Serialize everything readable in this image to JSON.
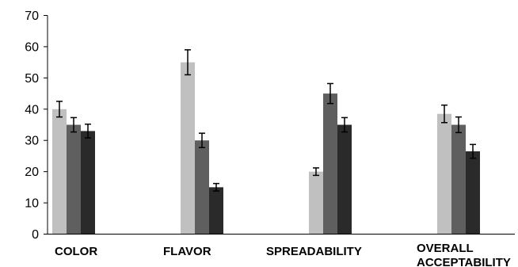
{
  "chart_data": {
    "type": "bar",
    "title": "",
    "xlabel": "",
    "ylabel": "",
    "ylim": [
      0,
      70
    ],
    "yticks": [
      0,
      10,
      20,
      30,
      40,
      50,
      60,
      70
    ],
    "grid": false,
    "legend": "none",
    "categories": [
      "COLOR",
      "FLAVOR",
      "SPREADABILITY",
      "OVERALL ACCEPTABILITY"
    ],
    "series": [
      {
        "color": "#c0c0c0",
        "values": [
          40,
          55,
          20,
          38.5
        ],
        "errors": [
          2.5,
          4,
          1.2,
          2.8
        ]
      },
      {
        "color": "#5f5f5f",
        "values": [
          35,
          30,
          45,
          35
        ],
        "errors": [
          2.3,
          2.3,
          3.2,
          2.5
        ]
      },
      {
        "color": "#2a2a2a",
        "values": [
          33,
          15,
          35,
          26.5
        ],
        "errors": [
          2.2,
          1.2,
          2.3,
          2.2
        ]
      }
    ]
  }
}
